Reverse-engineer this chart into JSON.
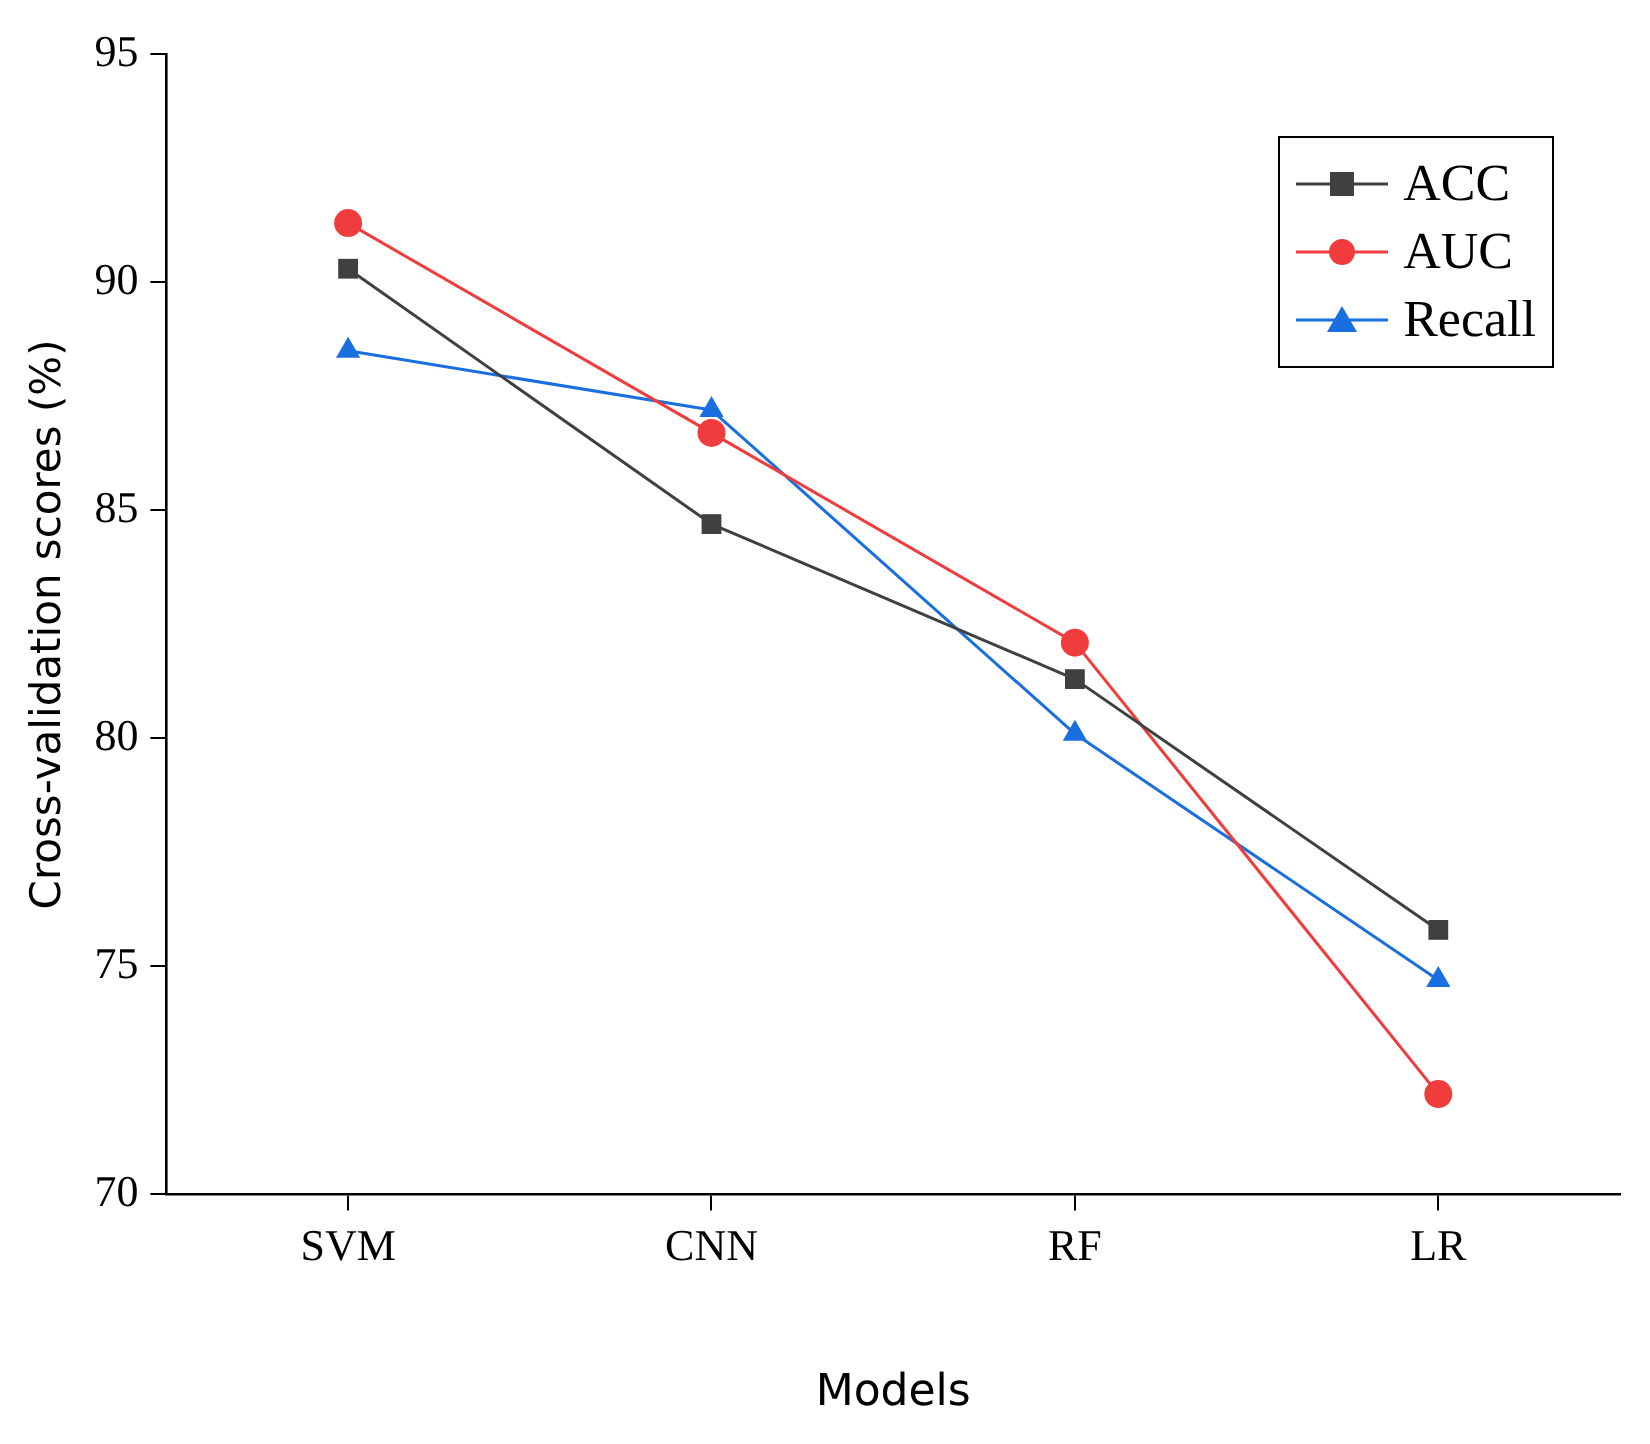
{
  "chart_data": {
    "type": "line",
    "xlabel": "Models",
    "ylabel": "Cross-validation scores (%)",
    "categories": [
      "SVM",
      "CNN",
      "RF",
      "LR"
    ],
    "series": [
      {
        "name": "ACC",
        "color": "#404040",
        "marker": "square",
        "values": [
          90.3,
          84.7,
          81.3,
          75.8
        ]
      },
      {
        "name": "AUC",
        "color": "#f03c3c",
        "marker": "circle",
        "values": [
          91.3,
          86.7,
          82.1,
          72.2
        ]
      },
      {
        "name": "Recall",
        "color": "#1a6fe0",
        "marker": "triangle",
        "values": [
          88.5,
          87.2,
          80.1,
          74.7
        ]
      }
    ],
    "ylim": [
      70,
      95
    ],
    "yticks": [
      70,
      75,
      80,
      85,
      90,
      95
    ],
    "grid": false,
    "legend": "top right",
    "line_style": "solid"
  }
}
